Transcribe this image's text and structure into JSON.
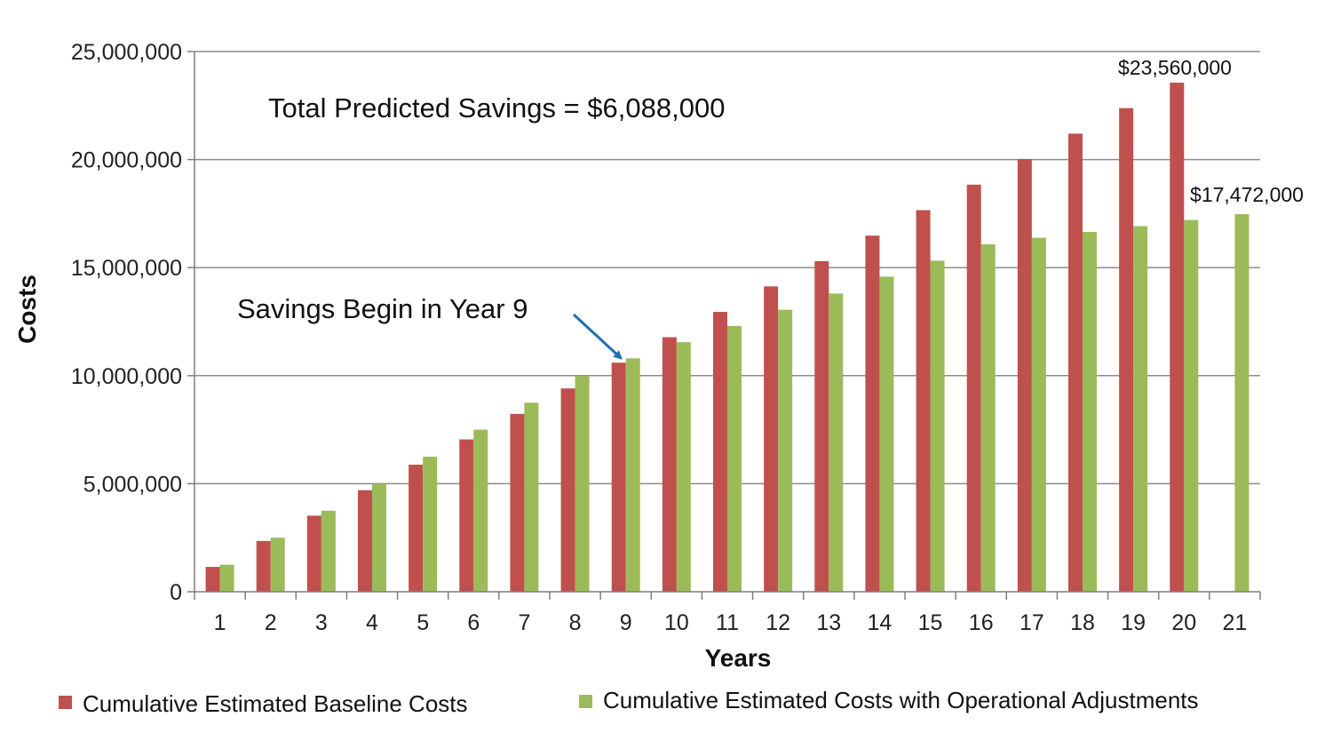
{
  "chart_data": {
    "type": "bar",
    "xlabel": "Years",
    "ylabel": "Costs",
    "ylim": [
      0,
      25000000
    ],
    "y_ticks": [
      "0",
      "5,000,000",
      "10,000,000",
      "15,000,000",
      "20,000,000",
      "25,000,000"
    ],
    "grid": "horizontal",
    "legend_position": "bottom",
    "categories": [
      "1",
      "2",
      "3",
      "4",
      "5",
      "6",
      "7",
      "8",
      "9",
      "10",
      "11",
      "12",
      "13",
      "14",
      "15",
      "16",
      "17",
      "18",
      "19",
      "20",
      "21"
    ],
    "series": [
      {
        "name": "Cumulative Estimated Baseline Costs",
        "color": "#c0504d",
        "values": [
          1150000,
          2350000,
          3520000,
          4700000,
          5880000,
          7050000,
          8230000,
          9410000,
          10600000,
          11780000,
          12950000,
          14130000,
          15300000,
          16480000,
          17660000,
          18840000,
          20020000,
          21200000,
          22380000,
          23560000,
          null
        ]
      },
      {
        "name": "Cumulative Estimated Costs with Operational Adjustments",
        "color": "#9bbb59",
        "values": [
          1250000,
          2500000,
          3750000,
          5000000,
          6250000,
          7500000,
          8750000,
          10000000,
          10800000,
          11550000,
          12300000,
          13050000,
          13800000,
          14580000,
          15320000,
          16080000,
          16380000,
          16650000,
          16920000,
          17200000,
          17472000
        ]
      }
    ],
    "annotations": {
      "savings_total": "Total Predicted Savings = $6,088,000",
      "savings_begin": "Savings Begin in Year 9",
      "baseline_final_label": "$23,560,000",
      "adjusted_final_label": "$17,472,000"
    },
    "arrow_color": "#1f6fb2",
    "axis_color": "#7f7f7f"
  }
}
